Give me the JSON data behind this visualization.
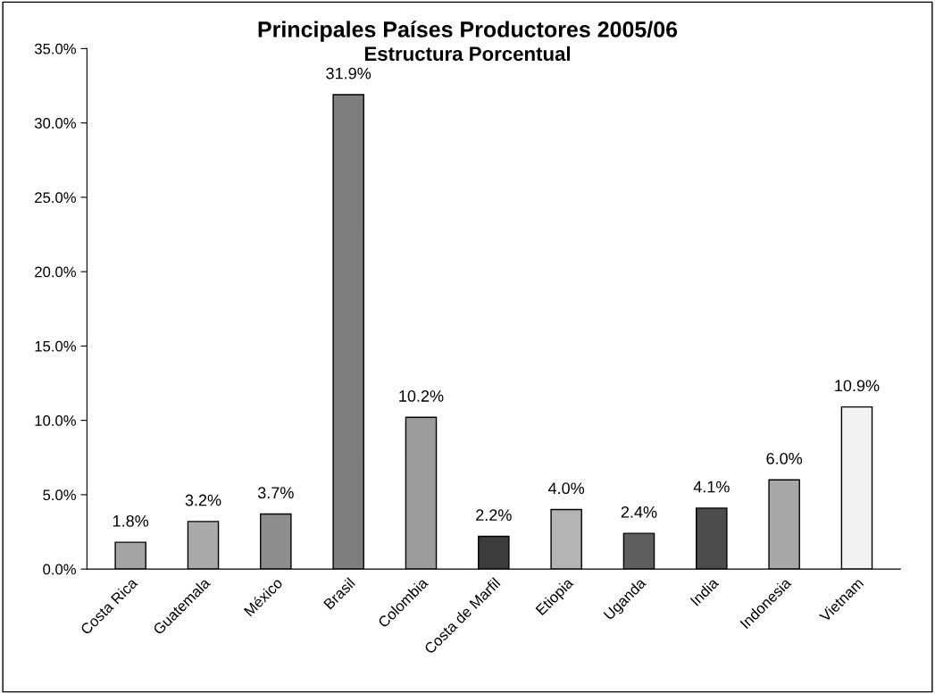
{
  "chart_data": {
    "type": "bar",
    "title": "Principales Países Productores 2005/06",
    "subtitle": "Estructura Porcentual",
    "categories": [
      "Costa Rica",
      "Guatemala",
      "México",
      "Brasil",
      "Colombia",
      "Costa de Marfil",
      "Etiopia",
      "Uganda",
      "India",
      "Indonesia",
      "Vietnam"
    ],
    "values": [
      1.8,
      3.2,
      3.7,
      31.9,
      10.2,
      2.2,
      4.0,
      2.4,
      4.1,
      6.0,
      10.9
    ],
    "value_labels": [
      "1.8%",
      "3.2%",
      "3.7%",
      "31.9%",
      "10.2%",
      "2.2%",
      "4.0%",
      "2.4%",
      "4.1%",
      "6.0%",
      "10.9%"
    ],
    "colors": [
      "#a4a4a4",
      "#aaaaaa",
      "#8e8e8e",
      "#7e7e7e",
      "#9c9c9c",
      "#3c3c3c",
      "#b4b4b4",
      "#5e5e5e",
      "#4c4c4c",
      "#a8a8a8",
      "#f2f2f2"
    ],
    "ylim": [
      0,
      35
    ],
    "yticks": [
      {
        "value": 0,
        "label": "0.0%"
      },
      {
        "value": 5,
        "label": "5.0%"
      },
      {
        "value": 10,
        "label": "10.0%"
      },
      {
        "value": 15,
        "label": "15.0%"
      },
      {
        "value": 20,
        "label": "20.0%"
      },
      {
        "value": 25,
        "label": "25.0%"
      },
      {
        "value": 30,
        "label": "30.0%"
      },
      {
        "value": 35,
        "label": "35.0%"
      }
    ],
    "grid": false,
    "legend": false
  }
}
